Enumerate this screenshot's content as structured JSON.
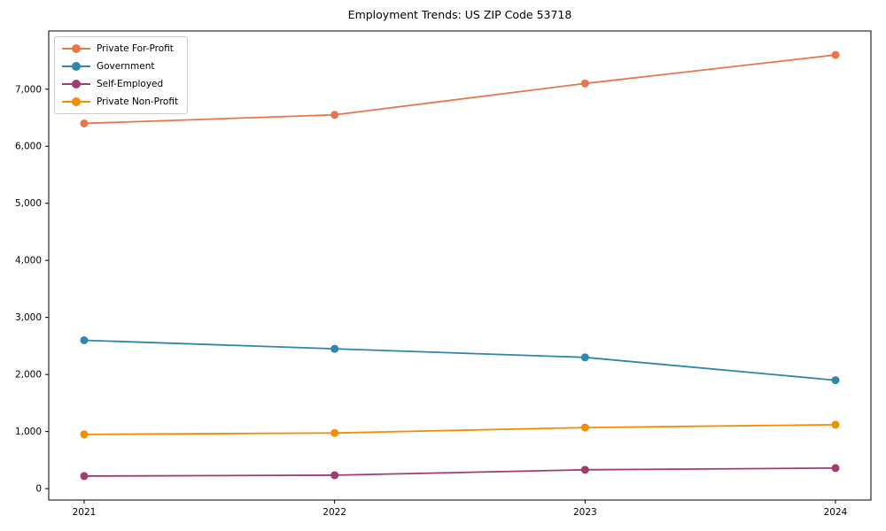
{
  "chart_data": {
    "type": "line",
    "title": "Employment Trends: US ZIP Code 53718",
    "categories": [
      "2021",
      "2022",
      "2023",
      "2024"
    ],
    "series": [
      {
        "name": "Private For-Profit",
        "color": "#E8764B",
        "values": [
          6400,
          6550,
          7100,
          7600
        ]
      },
      {
        "name": "Government",
        "color": "#2E86AB",
        "values": [
          2600,
          2450,
          2300,
          1900
        ]
      },
      {
        "name": "Self-Employed",
        "color": "#A23B72",
        "values": [
          220,
          235,
          330,
          360
        ]
      },
      {
        "name": "Private Non-Profit",
        "color": "#F18F01",
        "values": [
          950,
          975,
          1070,
          1120
        ]
      }
    ],
    "xlabel": "",
    "ylabel": "",
    "ylim": [
      -200,
      8020
    ],
    "yticks": [
      0,
      1000,
      2000,
      3000,
      4000,
      5000,
      6000,
      7000
    ],
    "ytick_labels": [
      "0",
      "1,000",
      "2,000",
      "3,000",
      "4,000",
      "5,000",
      "6,000",
      "7,000"
    ],
    "grid": false,
    "legend_position": "upper-left",
    "marker": "circle",
    "axis_color": "#000000",
    "tick_label_color": "#000000"
  }
}
